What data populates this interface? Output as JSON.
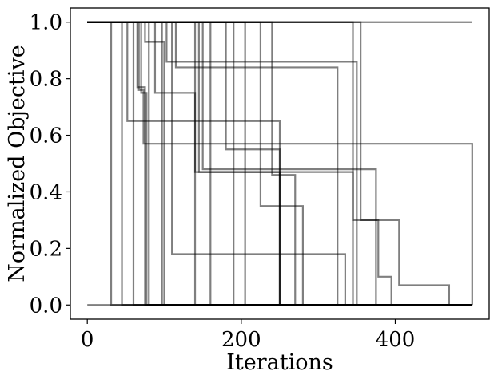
{
  "chart_data": {
    "type": "line",
    "title": "",
    "xlabel": "Iterations",
    "ylabel": "Normalized Objective",
    "xlim": [
      -22,
      522
    ],
    "ylim": [
      -0.05,
      1.05
    ],
    "x_ticks": [
      0,
      200,
      400
    ],
    "x_tick_labels": [
      "0",
      "200",
      "400"
    ],
    "y_ticks": [
      0.0,
      0.2,
      0.4,
      0.6,
      0.8,
      1.0
    ],
    "y_tick_labels": [
      "0.0",
      "0.2",
      "0.4",
      "0.6",
      "0.8",
      "1.0"
    ],
    "grid": false,
    "legend": "none",
    "line_color": "#000000",
    "line_alpha": 0.5,
    "step_style": "post",
    "series": [
      {
        "x": [
          0,
          31,
          500
        ],
        "y": [
          1.0,
          0.0,
          0.0
        ]
      },
      {
        "x": [
          0,
          45,
          500
        ],
        "y": [
          1.0,
          0.0,
          0.0
        ]
      },
      {
        "x": [
          0,
          52,
          250,
          500
        ],
        "y": [
          1.0,
          0.65,
          0.0,
          0.0
        ]
      },
      {
        "x": [
          0,
          60,
          500
        ],
        "y": [
          1.0,
          0.0,
          0.0
        ]
      },
      {
        "x": [
          0,
          65,
          75,
          500
        ],
        "y": [
          1.0,
          0.77,
          0.0,
          0.0
        ]
      },
      {
        "x": [
          0,
          67,
          73,
          500
        ],
        "y": [
          1.0,
          0.76,
          0.57,
          0.0
        ]
      },
      {
        "x": [
          0,
          70,
          77,
          500
        ],
        "y": [
          1.0,
          0.75,
          0.0,
          0.0
        ]
      },
      {
        "x": [
          0,
          75,
          100,
          500
        ],
        "y": [
          1.0,
          0.93,
          0.0,
          0.0
        ]
      },
      {
        "x": [
          0,
          80,
          500
        ],
        "y": [
          1.0,
          0.0,
          0.0
        ]
      },
      {
        "x": [
          0,
          88,
          140,
          500
        ],
        "y": [
          1.0,
          0.75,
          0.0,
          0.0
        ]
      },
      {
        "x": [
          0,
          97,
          500
        ],
        "y": [
          1.0,
          0.0,
          0.0
        ]
      },
      {
        "x": [
          0,
          103,
          350,
          500
        ],
        "y": [
          1.0,
          0.86,
          0.0,
          0.0
        ]
      },
      {
        "x": [
          0,
          110,
          335,
          500
        ],
        "y": [
          1.0,
          0.18,
          0.0,
          0.0
        ]
      },
      {
        "x": [
          0,
          115,
          325,
          500
        ],
        "y": [
          1.0,
          0.84,
          0.0,
          0.0
        ]
      },
      {
        "x": [
          0,
          140,
          250,
          500
        ],
        "y": [
          1.0,
          0.47,
          0.0,
          0.0
        ]
      },
      {
        "x": [
          0,
          145,
          345,
          500
        ],
        "y": [
          1.0,
          0.47,
          0.0,
          0.0
        ]
      },
      {
        "x": [
          0,
          150,
          375,
          500
        ],
        "y": [
          1.0,
          0.48,
          0.0,
          0.0
        ]
      },
      {
        "x": [
          0,
          160,
          500
        ],
        "y": [
          1.0,
          0.0,
          0.0
        ]
      },
      {
        "x": [
          0,
          180,
          250,
          500
        ],
        "y": [
          1.0,
          0.55,
          0.0,
          0.0
        ]
      },
      {
        "x": [
          0,
          190,
          500
        ],
        "y": [
          1.0,
          0.0,
          0.0
        ]
      },
      {
        "x": [
          0,
          205,
          500
        ],
        "y": [
          1.0,
          0.0,
          0.0
        ]
      },
      {
        "x": [
          0,
          225,
          280,
          500
        ],
        "y": [
          1.0,
          0.35,
          0.0,
          0.0
        ]
      },
      {
        "x": [
          0,
          240,
          270,
          500
        ],
        "y": [
          1.0,
          0.46,
          0.0,
          0.0
        ]
      },
      {
        "x": [
          0,
          345,
          378,
          395,
          500
        ],
        "y": [
          1.0,
          0.3,
          0.1,
          0.0,
          0.0
        ]
      },
      {
        "x": [
          0,
          355,
          405,
          470,
          500
        ],
        "y": [
          1.0,
          0.3,
          0.07,
          0.0,
          0.0
        ]
      },
      {
        "x": [
          0,
          500
        ],
        "y": [
          1.0,
          1.0
        ]
      },
      {
        "x": [
          0,
          500
        ],
        "y": [
          0.0,
          0.0
        ]
      }
    ]
  }
}
